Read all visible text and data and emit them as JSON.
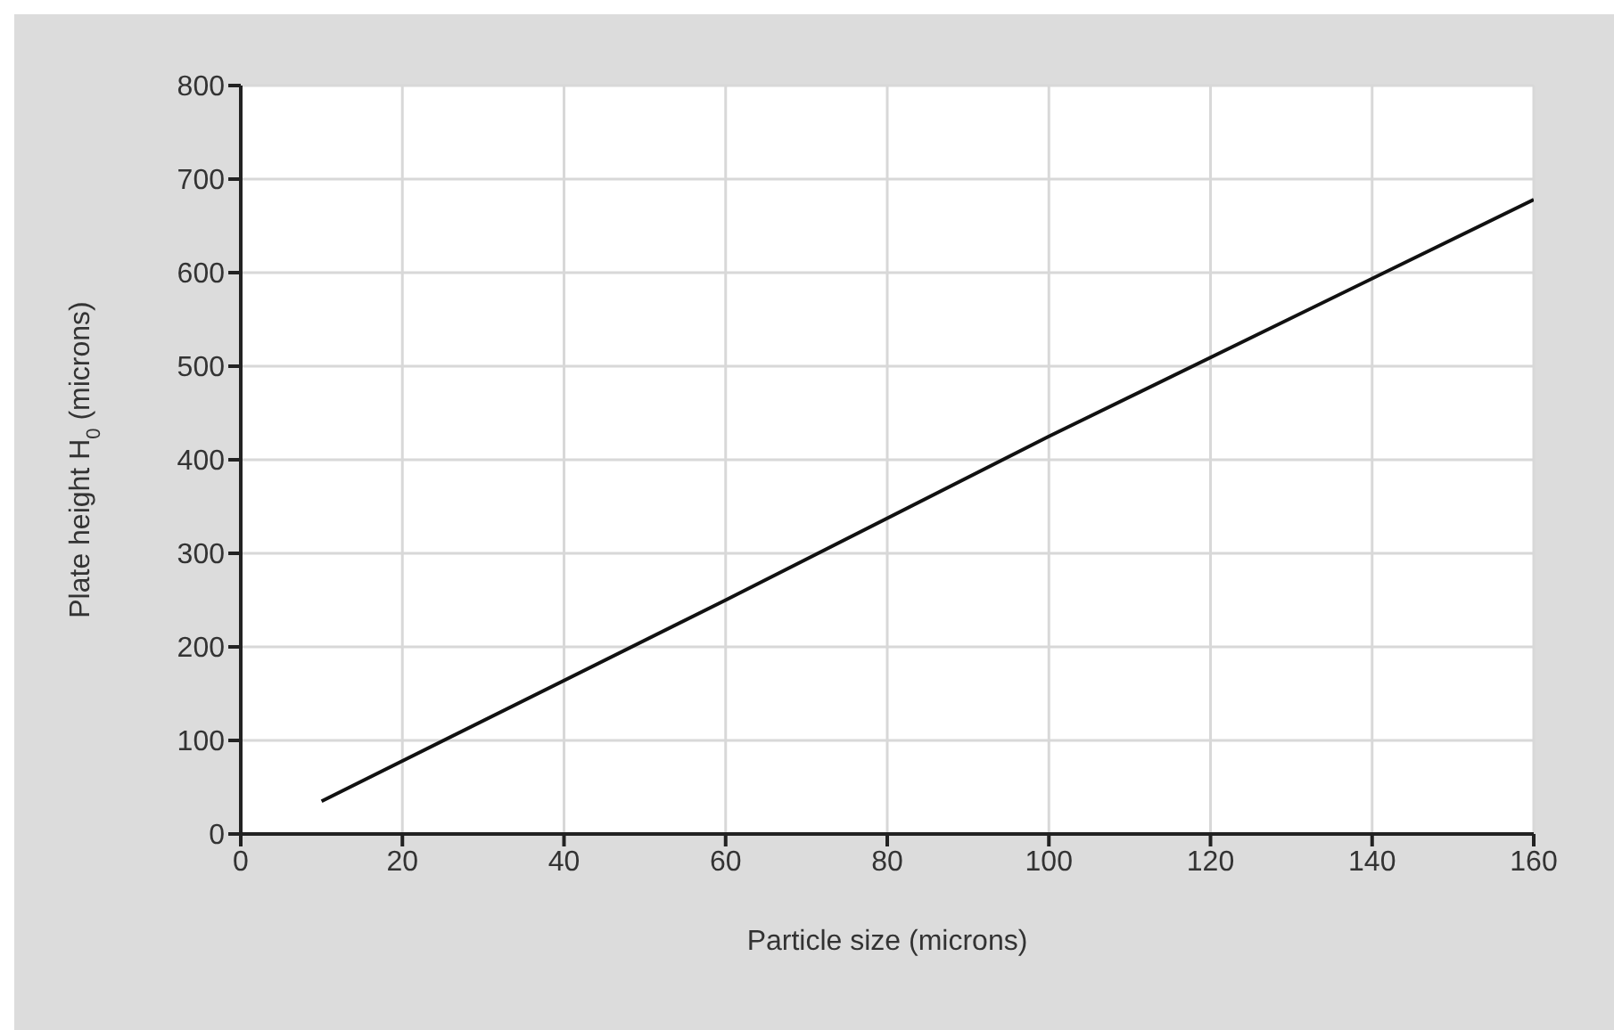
{
  "chart_data": {
    "type": "line",
    "xlabel": "Particle size (microns)",
    "ylabel": "Plate height H$_{0}$ (microns)",
    "x": [
      10,
      60,
      100,
      160
    ],
    "series": [
      {
        "color": "#111111",
        "values": [
          35,
          250,
          425,
          678
        ]
      }
    ],
    "xlim": [
      0,
      160
    ],
    "xticks": [
      0,
      20,
      40,
      60,
      80,
      100,
      120,
      140,
      160
    ],
    "ylim": [
      0,
      800
    ],
    "yticks": [
      0,
      100,
      200,
      300,
      400,
      500,
      600,
      700,
      800
    ],
    "grid": true,
    "marker": "none",
    "line_style": "solid",
    "legend": false
  }
}
